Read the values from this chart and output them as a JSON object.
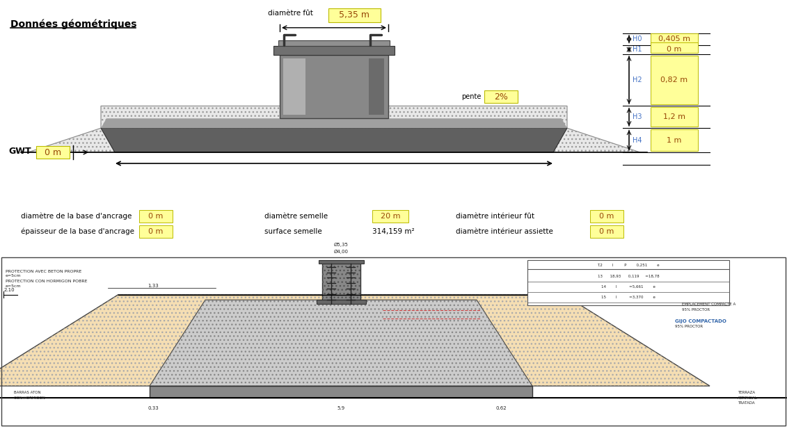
{
  "title": "Données géométriques",
  "yellow_bg": "#FFFF99",
  "blue_text": "#4472C4",
  "brown_text": "#974706",
  "black": "#000000",
  "sand_color": "#F5DEB3",
  "params": {
    "diametre_fut": "5,35 m",
    "pente": "2%",
    "H0": "0,405 m",
    "H1": "0 m",
    "H2": "0,82 m",
    "H3": "1,2 m",
    "H4": "1 m",
    "GWT": "0 m",
    "diametre_base_ancrage_label": "diamètre de la base d'ancrage",
    "diametre_base_ancrage_val": "0 m",
    "epaisseur_base_ancrage_label": "épaisseur de la base d'ancrage",
    "epaisseur_base_ancrage_val": "0 m",
    "diametre_semelle_label": "diamètre semelle",
    "diametre_semelle_val": "20 m",
    "surface_semelle_label": "surface semelle",
    "surface_semelle_val": "314,159 m²",
    "diametre_int_fut_label": "diamètre intérieur fût",
    "diametre_int_fut_val": "0 m",
    "diametre_int_assiette_label": "diamètre intérieur assiette",
    "diametre_int_assiette_val": "0 m"
  }
}
